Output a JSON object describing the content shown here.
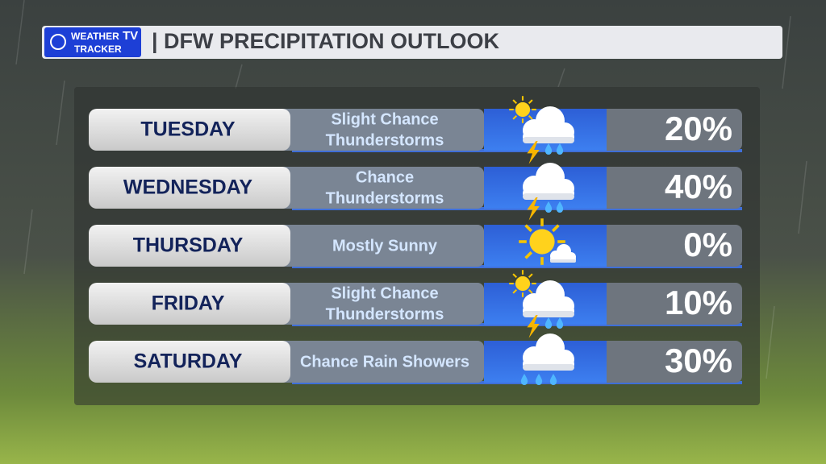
{
  "header": {
    "logo": {
      "line1": "WEATHER",
      "tv": "TV",
      "line2": "TRACKER"
    },
    "title": "| DFW PRECIPITATION OUTLOOK"
  },
  "rows": [
    {
      "day": "TUESDAY",
      "forecast": [
        "Slight Chance",
        "Thunderstorms"
      ],
      "chance": "20%"
    },
    {
      "day": "WEDNESDAY",
      "forecast": [
        "Chance",
        "Thunderstorms"
      ],
      "chance": "40%"
    },
    {
      "day": "THURSDAY",
      "forecast": [
        "Mostly Sunny"
      ],
      "chance": "0%"
    },
    {
      "day": "FRIDAY",
      "forecast": [
        "Slight Chance",
        "Thunderstorms"
      ],
      "chance": "10%"
    },
    {
      "day": "SATURDAY",
      "forecast": [
        "Chance Rain Showers"
      ],
      "chance": "30%"
    }
  ]
}
